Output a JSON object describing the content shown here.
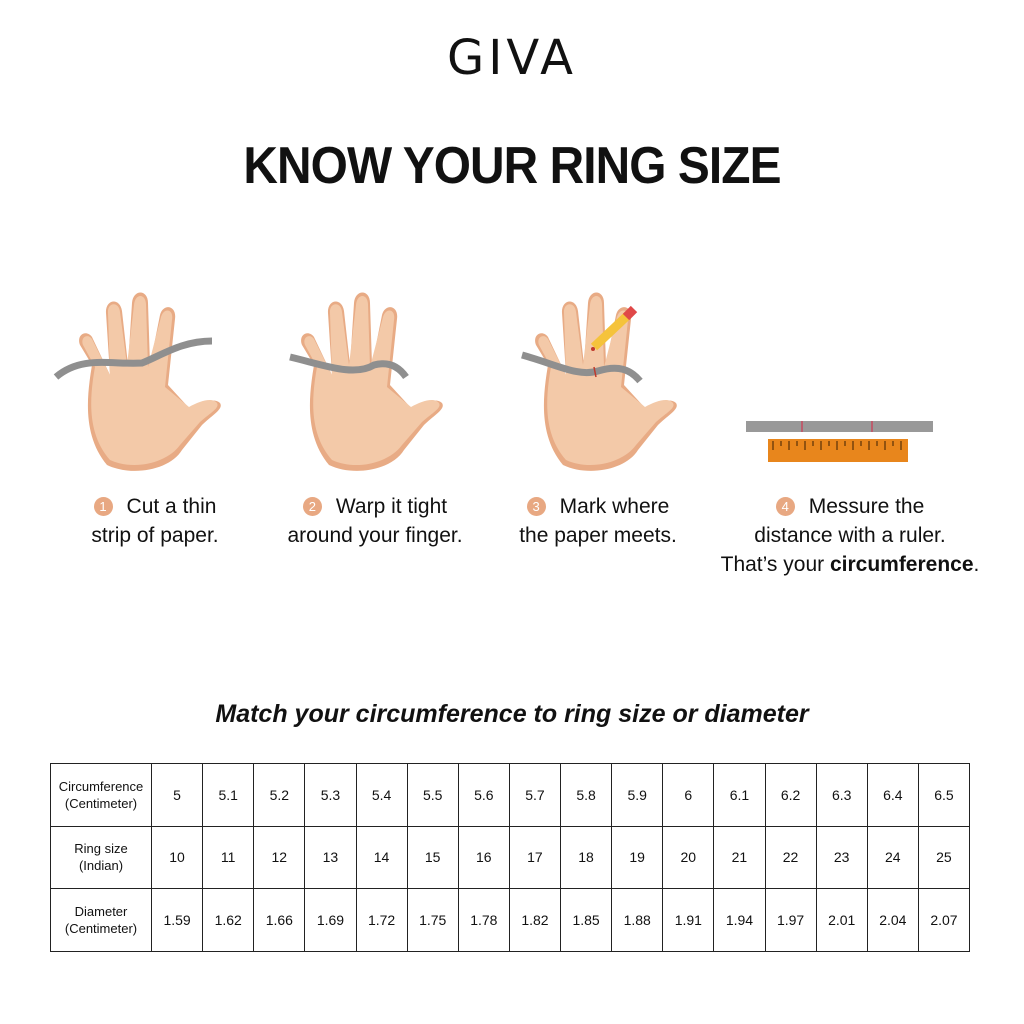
{
  "brand": {
    "logo_text": "GIVA"
  },
  "title": "KNOW YOUR RING SIZE",
  "colors": {
    "skin": "#f3c9a8",
    "skin_shadow": "#e8ab85",
    "step_badge": "#e8a882",
    "paper_strip": "#8f8f8f",
    "ruler": "#e8861c"
  },
  "steps": [
    {
      "number": "1",
      "line1": "Cut a thin",
      "line2": "strip of paper.",
      "icon": "hand-with-paper-strip"
    },
    {
      "number": "2",
      "line1": "Warp it tight",
      "line2": "around your finger.",
      "icon": "hand-paper-wrapped-finger"
    },
    {
      "number": "3",
      "line1": "Mark where",
      "line2": "the paper meets.",
      "icon": "hand-pencil-marking"
    },
    {
      "number": "4",
      "line1": "Messure the",
      "line2": "distance with a ruler.",
      "line3_prefix": "That’s your ",
      "line3_bold": "circumference",
      "line3_suffix": ".",
      "icon": "paper-strip-and-ruler"
    }
  ],
  "subtitle": "Match your circumference to ring size or diameter",
  "table": {
    "rows": [
      {
        "header1": "Circumference",
        "header2": "(Centimeter)",
        "values": [
          "5",
          "5.1",
          "5.2",
          "5.3",
          "5.4",
          "5.5",
          "5.6",
          "5.7",
          "5.8",
          "5.9",
          "6",
          "6.1",
          "6.2",
          "6.3",
          "6.4",
          "6.5"
        ]
      },
      {
        "header1": "Ring size",
        "header2": "(Indian)",
        "values": [
          "10",
          "11",
          "12",
          "13",
          "14",
          "15",
          "16",
          "17",
          "18",
          "19",
          "20",
          "21",
          "22",
          "23",
          "24",
          "25"
        ]
      },
      {
        "header1": "Diameter",
        "header2": "(Centimeter)",
        "values": [
          "1.59",
          "1.62",
          "1.66",
          "1.69",
          "1.72",
          "1.75",
          "1.78",
          "1.82",
          "1.85",
          "1.88",
          "1.91",
          "1.94",
          "1.97",
          "2.01",
          "2.04",
          "2.07"
        ]
      }
    ]
  }
}
